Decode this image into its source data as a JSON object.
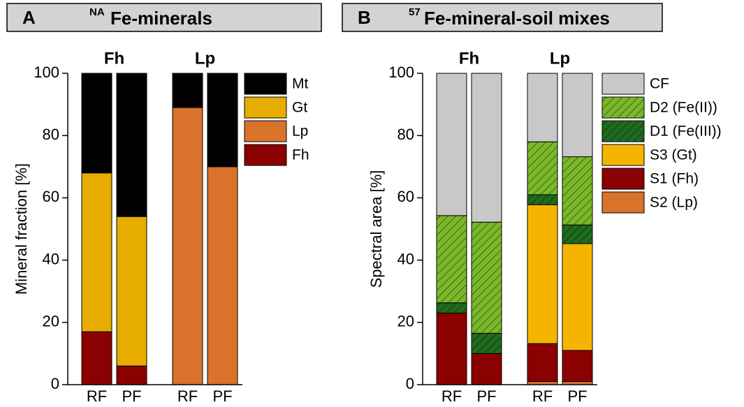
{
  "chart_data": [
    {
      "type": "stacked-bar",
      "panel_label": "A",
      "title_superscript": "NA",
      "title": "Fe-minerals",
      "y_label": "Mineral fraction [%]",
      "groups": [
        {
          "name": "Fh",
          "categories": [
            "RF",
            "PF"
          ]
        },
        {
          "name": "Lp",
          "categories": [
            "RF",
            "PF"
          ]
        }
      ],
      "ylim": [
        0,
        100
      ],
      "yticks": [
        0,
        20,
        40,
        60,
        80,
        100
      ],
      "series": [
        {
          "name": "Fh",
          "color": "#8b0000",
          "values": [
            17,
            6,
            0,
            0
          ]
        },
        {
          "name": "Lp",
          "color": "#d9722b",
          "values": [
            0,
            0,
            89,
            70
          ]
        },
        {
          "name": "Gt",
          "color": "#e6ac00",
          "values": [
            51,
            48,
            0,
            0
          ]
        },
        {
          "name": "Mt",
          "color": "#000000",
          "values": [
            32,
            46,
            11,
            30
          ]
        }
      ]
    },
    {
      "type": "stacked-bar",
      "panel_label": "B",
      "title_superscript": "57",
      "title": "Fe-mineral-soil mixes",
      "y_label": "Spectral area [%]",
      "groups": [
        {
          "name": "Fh",
          "categories": [
            "RF",
            "PF"
          ]
        },
        {
          "name": "Lp",
          "categories": [
            "RF",
            "PF"
          ]
        }
      ],
      "ylim": [
        0,
        100
      ],
      "yticks": [
        0,
        20,
        40,
        60,
        80,
        100
      ],
      "series": [
        {
          "name": "S2 (Lp)",
          "color": "#d9722b",
          "values": [
            0,
            0,
            1,
            1
          ]
        },
        {
          "name": "S1 (Fh)",
          "color": "#8b0000",
          "values": [
            23,
            10,
            12.2,
            10
          ]
        },
        {
          "name": "S3 (Gt)",
          "color": "#f5b400",
          "values": [
            0,
            0,
            44.6,
            34.3
          ]
        },
        {
          "name": "D1 (Fe(III))",
          "color": "#1f6b1f",
          "hatch": true,
          "values": [
            3.3,
            6.5,
            3.2,
            6
          ]
        },
        {
          "name": "D2 (Fe(II))",
          "color": "#7ab82a",
          "hatch": true,
          "values": [
            28,
            35.7,
            17,
            21.9
          ]
        },
        {
          "name": "CF",
          "color": "#c8c8c8",
          "values": [
            45.7,
            47.8,
            22,
            26.8
          ]
        }
      ]
    }
  ]
}
